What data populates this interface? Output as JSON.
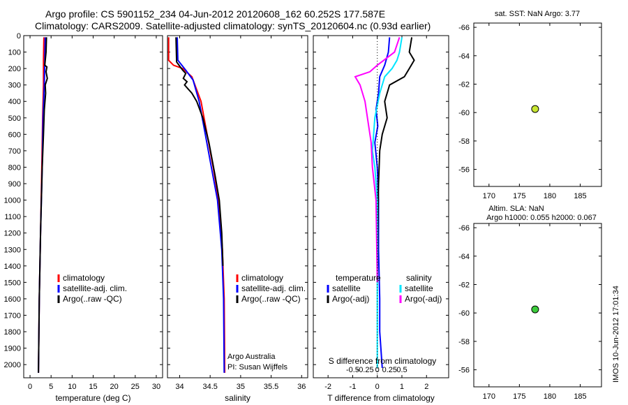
{
  "header": {
    "line1": "Argo profile: CS 5901152_234 04-Jun-2012 20120608_162 60.252S 177.587E",
    "line2": "Climatology: CARS2009. Satellite-adjusted climatology: synTS_20120604.nc (0.93d earlier)"
  },
  "side_label": "IMOS 10-Jun-2012 17:01:34",
  "colors": {
    "red": "#ff0000",
    "blue": "#0000ff",
    "black": "#000000",
    "cyan": "#00e5ff",
    "magenta": "#ff00ff"
  },
  "chart_data": [
    {
      "id": "temp",
      "type": "line",
      "xlabel": "temperature (deg C)",
      "ylabel": "",
      "xlim": [
        -1.5,
        31.5
      ],
      "ylim": [
        2080,
        0
      ],
      "xticks": [
        0,
        5,
        10,
        15,
        20,
        25,
        30
      ],
      "xticklabels": [
        "0",
        "5",
        "10",
        "15",
        "20",
        "25",
        "30"
      ],
      "yticks": [
        0,
        100,
        200,
        300,
        400,
        500,
        600,
        700,
        800,
        900,
        1000,
        1100,
        1200,
        1300,
        1400,
        1500,
        1600,
        1700,
        1800,
        1900,
        2000
      ],
      "yticklabels": [
        "0",
        "100",
        "200",
        "300",
        "400",
        "500",
        "600",
        "700",
        "800",
        "900",
        "1000",
        "1100",
        "1200",
        "1300",
        "1400",
        "1500",
        "1600",
        "1700",
        "1800",
        "1900",
        "2000"
      ],
      "series": [
        {
          "name": "climatology",
          "color": "#ff0000",
          "points": [
            [
              3.3,
              10
            ],
            [
              3.2,
              150
            ],
            [
              3.2,
              300
            ],
            [
              3.0,
              500
            ],
            [
              2.8,
              800
            ],
            [
              2.5,
              1200
            ],
            [
              2.2,
              1600
            ],
            [
              2.0,
              2050
            ]
          ]
        },
        {
          "name": "satellite-adj. clim.",
          "color": "#0000ff",
          "points": [
            [
              3.6,
              10
            ],
            [
              3.5,
              150
            ],
            [
              3.4,
              300
            ],
            [
              3.1,
              500
            ],
            [
              2.9,
              800
            ],
            [
              2.5,
              1200
            ],
            [
              2.2,
              1600
            ],
            [
              2.0,
              2050
            ]
          ]
        },
        {
          "name": "Argo(..raw -QC)",
          "color": "#000000",
          "points": [
            [
              3.9,
              10
            ],
            [
              3.8,
              100
            ],
            [
              3.5,
              180
            ],
            [
              4.0,
              190
            ],
            [
              3.8,
              220
            ],
            [
              4.1,
              260
            ],
            [
              3.6,
              300
            ],
            [
              3.7,
              350
            ],
            [
              3.4,
              450
            ],
            [
              3.2,
              600
            ],
            [
              2.9,
              800
            ],
            [
              2.5,
              1200
            ],
            [
              2.2,
              1600
            ],
            [
              2.0,
              2050
            ]
          ]
        }
      ],
      "legend": {
        "placement": "lower-right",
        "entries": [
          {
            "label": "climatology",
            "color": "#ff0000"
          },
          {
            "label": "satellite-adj. clim.",
            "color": "#0000ff"
          },
          {
            "label": "Argo(..raw -QC)",
            "color": "#000000"
          }
        ]
      }
    },
    {
      "id": "sal",
      "type": "line",
      "xlabel": "salinity",
      "ylabel": "",
      "xlim": [
        33.8,
        36.1
      ],
      "ylim": [
        2080,
        0
      ],
      "xticks": [
        34,
        34.5,
        35,
        35.5,
        36
      ],
      "xticklabels": [
        "34",
        "34.5",
        "35",
        "35.5",
        "36"
      ],
      "yticks": [
        0,
        100,
        200,
        300,
        400,
        500,
        600,
        700,
        800,
        900,
        1000,
        1100,
        1200,
        1300,
        1400,
        1500,
        1600,
        1700,
        1800,
        1900,
        2000
      ],
      "yticklabels": [],
      "series": [
        {
          "name": "climatology",
          "color": "#ff0000",
          "points": [
            [
              33.82,
              10
            ],
            [
              33.82,
              150
            ],
            [
              33.9,
              180
            ],
            [
              34.05,
              200
            ],
            [
              34.2,
              250
            ],
            [
              34.35,
              400
            ],
            [
              34.45,
              600
            ],
            [
              34.55,
              800
            ],
            [
              34.64,
              1000
            ],
            [
              34.7,
              1300
            ],
            [
              34.73,
              1600
            ],
            [
              34.74,
              2050
            ]
          ]
        },
        {
          "name": "satellite-adj. clim.",
          "color": "#0000ff",
          "points": [
            [
              33.96,
              10
            ],
            [
              33.97,
              150
            ],
            [
              34.1,
              210
            ],
            [
              34.22,
              270
            ],
            [
              34.32,
              400
            ],
            [
              34.42,
              600
            ],
            [
              34.52,
              800
            ],
            [
              34.62,
              1000
            ],
            [
              34.69,
              1300
            ],
            [
              34.72,
              1600
            ],
            [
              34.73,
              2050
            ]
          ]
        },
        {
          "name": "Argo(..raw -QC)",
          "color": "#000000",
          "points": [
            [
              33.94,
              10
            ],
            [
              33.95,
              160
            ],
            [
              34.05,
              210
            ],
            [
              34.1,
              230
            ],
            [
              34.06,
              260
            ],
            [
              34.12,
              280
            ],
            [
              34.08,
              300
            ],
            [
              34.2,
              350
            ],
            [
              34.28,
              400
            ],
            [
              34.38,
              500
            ],
            [
              34.48,
              650
            ],
            [
              34.58,
              850
            ],
            [
              34.65,
              1000
            ],
            [
              34.69,
              1200
            ],
            [
              34.71,
              1400
            ]
          ]
        }
      ],
      "legend": {
        "placement": "lower-right",
        "entries": [
          {
            "label": "climatology",
            "color": "#ff0000"
          },
          {
            "label": "satellite-adj. clim.",
            "color": "#0000ff"
          },
          {
            "label": "Argo(..raw -QC)",
            "color": "#000000"
          }
        ]
      },
      "annotation": [
        "Argo Australia",
        "PI: Susan Wijffels"
      ]
    },
    {
      "id": "diff",
      "type": "line",
      "xlabel": "T difference from climatology",
      "xlabel2": "S difference from climatology",
      "ylabel": "",
      "xlim": [
        -2.6,
        2.9
      ],
      "ylim": [
        2080,
        0
      ],
      "xticks": [
        -2,
        -1,
        0,
        1,
        2
      ],
      "xticklabels": [
        "-2",
        "-1",
        "0",
        "1",
        "2"
      ],
      "xticks2": [
        -1,
        -0.5,
        0,
        0.5,
        1
      ],
      "xticklabels2": [
        "-0.5",
        "-0.25",
        "0",
        "0.25",
        "0.5"
      ],
      "yticks": [
        0,
        100,
        200,
        300,
        400,
        500,
        600,
        700,
        800,
        900,
        1000,
        1100,
        1200,
        1300,
        1400,
        1500,
        1600,
        1700,
        1800,
        1900,
        2000
      ],
      "yticklabels": [],
      "series": [
        {
          "name": "temperature satellite",
          "color": "#0000ff",
          "points": [
            [
              0.5,
              10
            ],
            [
              0.45,
              100
            ],
            [
              0.3,
              180
            ],
            [
              0.1,
              250
            ],
            [
              0.05,
              350
            ],
            [
              -0.05,
              450
            ],
            [
              0.02,
              550
            ],
            [
              -0.1,
              650
            ],
            [
              0.0,
              800
            ],
            [
              0.05,
              1000
            ],
            [
              0.05,
              1300
            ],
            [
              0.1,
              1600
            ],
            [
              0.1,
              1800
            ],
            [
              0.2,
              2020
            ]
          ]
        },
        {
          "name": "temperature Argo(-adj)",
          "color": "#000000",
          "points": [
            [
              1.4,
              10
            ],
            [
              1.3,
              100
            ],
            [
              1.5,
              150
            ],
            [
              1.3,
              200
            ],
            [
              1.1,
              250
            ],
            [
              0.5,
              300
            ],
            [
              0.3,
              400
            ],
            [
              0.4,
              500
            ],
            [
              0.2,
              600
            ],
            [
              0.1,
              700
            ],
            [
              0.05,
              900
            ],
            [
              0.02,
              1200
            ],
            [
              0.0,
              1500
            ]
          ]
        },
        {
          "name": "salinity satellite",
          "color": "#00e5ff",
          "points": [
            [
              1.0,
              10
            ],
            [
              0.9,
              100
            ],
            [
              0.8,
              150
            ],
            [
              0.6,
              200
            ],
            [
              0.3,
              250
            ],
            [
              0.1,
              350
            ],
            [
              -0.1,
              500
            ],
            [
              -0.2,
              700
            ],
            [
              -0.1,
              800
            ],
            [
              0.0,
              1000
            ],
            [
              0.0,
              1500
            ],
            [
              0.0,
              2020
            ]
          ]
        },
        {
          "name": "salinity Argo(-adj)",
          "color": "#ff00ff",
          "points": [
            [
              0.9,
              10
            ],
            [
              0.7,
              100
            ],
            [
              0.0,
              180
            ],
            [
              -0.3,
              220
            ],
            [
              -0.9,
              250
            ],
            [
              -0.7,
              300
            ],
            [
              -0.5,
              400
            ],
            [
              -0.4,
              500
            ],
            [
              -0.25,
              650
            ],
            [
              -0.2,
              800
            ],
            [
              -0.05,
              1000
            ],
            [
              -0.02,
              1300
            ],
            [
              0.0,
              1500
            ]
          ]
        }
      ],
      "legend": {
        "placement": "lower-center",
        "groups": [
          {
            "title": "temperature",
            "entries": [
              {
                "label": "satellite",
                "color": "#0000ff"
              },
              {
                "label": "Argo(-adj)",
                "color": "#000000"
              }
            ]
          },
          {
            "title": "salinity",
            "entries": [
              {
                "label": "satellite",
                "color": "#00e5ff"
              },
              {
                "label": "Argo(-adj)",
                "color": "#ff00ff"
              }
            ]
          }
        ]
      }
    },
    {
      "id": "sst",
      "type": "heatmap",
      "title": "sat. SST: NaN Argo: 3.77",
      "xlim": [
        167.5,
        188.5
      ],
      "ylim": [
        -66.3,
        -54.8
      ],
      "xticks": [
        170,
        175,
        180,
        185
      ],
      "xticklabels": [
        "170",
        "175",
        "180",
        "185"
      ],
      "yticks": [
        -56,
        -58,
        -60,
        -62,
        -64,
        -66
      ],
      "yticklabels": [
        "-56",
        "-58",
        "-60",
        "-62",
        "-64",
        "-66"
      ],
      "data_extent": {
        "lon": [
          168,
          180.5
        ],
        "lat": [
          -60.2,
          -54.8
        ]
      },
      "marker": {
        "lon": 177.587,
        "lat": -60.252,
        "color": "#c8e632"
      }
    },
    {
      "id": "sla",
      "type": "heatmap",
      "title": "Altim. SLA: NaN",
      "subtitle": "Argo h1000: 0.055 h2000: 0.067",
      "xlim": [
        167.5,
        188.5
      ],
      "ylim": [
        -66.3,
        -54.8
      ],
      "xticks": [
        170,
        175,
        180,
        185
      ],
      "xticklabels": [
        "170",
        "175",
        "180",
        "185"
      ],
      "yticks": [
        -56,
        -58,
        -60,
        -62,
        -64,
        -66
      ],
      "yticklabels": [
        "-56",
        "-58",
        "-60",
        "-62",
        "-64",
        "-66"
      ],
      "data_extent": {
        "lon": [
          168,
          180.5
        ],
        "lat": [
          -60.2,
          -54.8
        ]
      },
      "marker": {
        "lon": 177.587,
        "lat": -60.252,
        "color": "#3ccc3c"
      }
    }
  ]
}
